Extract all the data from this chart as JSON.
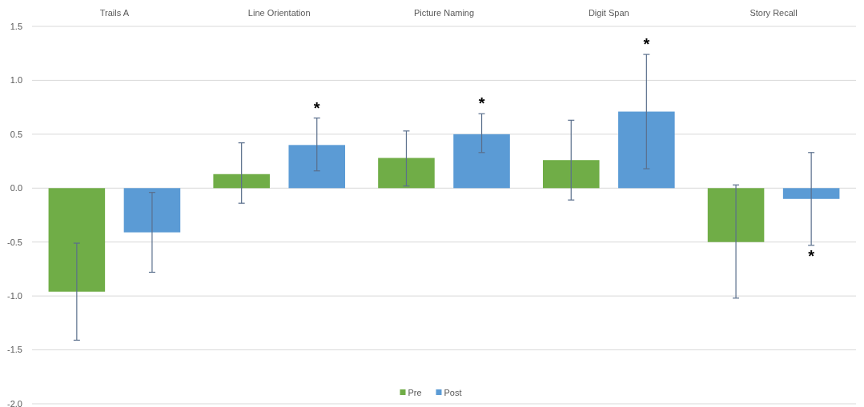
{
  "chart_data": {
    "type": "bar",
    "categories": [
      "Trails A",
      "Line Orientation",
      "Picture Naming",
      "Digit Span",
      "Story Recall"
    ],
    "series": [
      {
        "name": "Pre",
        "color": "#70ad47",
        "values": [
          -0.96,
          0.13,
          0.28,
          0.26,
          -0.5
        ],
        "errors": [
          [
            -1.41,
            -0.51
          ],
          [
            -0.14,
            0.42
          ],
          [
            0.02,
            0.53
          ],
          [
            -0.11,
            0.63
          ],
          [
            -1.02,
            0.03
          ]
        ]
      },
      {
        "name": "Post",
        "color": "#5b9bd5",
        "values": [
          -0.41,
          0.4,
          0.5,
          0.71,
          -0.1
        ],
        "errors": [
          [
            -0.78,
            -0.04
          ],
          [
            0.16,
            0.65
          ],
          [
            0.33,
            0.69
          ],
          [
            0.18,
            1.24
          ],
          [
            -0.53,
            0.33
          ]
        ]
      }
    ],
    "ylim": [
      -2,
      1.5
    ],
    "yticks": [
      {
        "value": -2,
        "label": "-2.0"
      },
      -1.5,
      {
        "value": -1,
        "label": "-1.0"
      },
      -0.5,
      {
        "value": 0,
        "label": "0.0"
      },
      0.5,
      {
        "value": 1,
        "label": "1.0"
      },
      1.5
    ],
    "grid": "y",
    "legend": "bottom",
    "annotations": [
      "*",
      "*",
      "*",
      "*"
    ]
  }
}
